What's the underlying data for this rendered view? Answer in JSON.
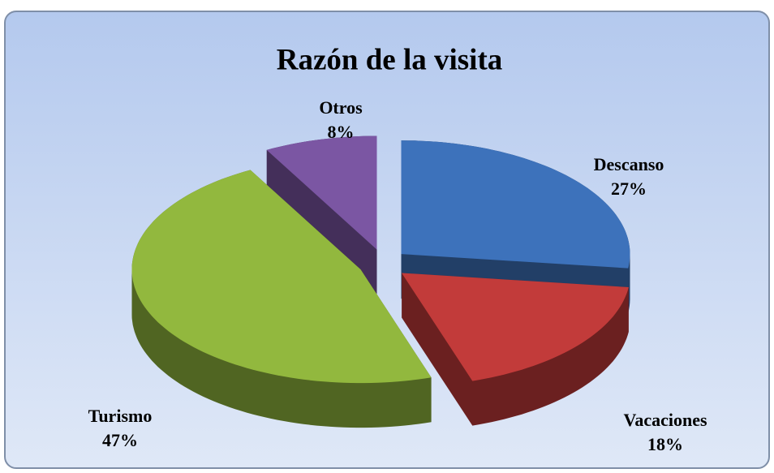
{
  "chart_data": {
    "type": "pie",
    "title": "Razón de la visita",
    "categories": [
      "Descanso",
      "Vacaciones",
      "Turismo",
      "Otros"
    ],
    "values": [
      27,
      18,
      47,
      8
    ],
    "value_labels": [
      "27%",
      "18%",
      "47%",
      "8%"
    ],
    "colors": [
      "#3d72bb",
      "#c23b3a",
      "#92b83e",
      "#7b56a3"
    ]
  }
}
